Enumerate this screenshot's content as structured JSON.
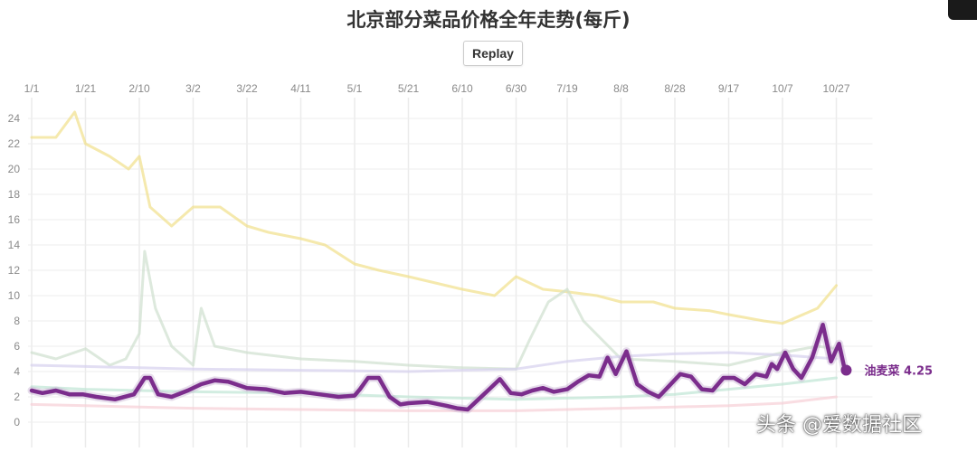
{
  "title": "北京部分菜品价格全年走势(每斤)",
  "replay_label": "Replay",
  "watermark": "头条 @爱数据社区",
  "chart_data": {
    "type": "line",
    "title": "北京部分菜品价格全年走势(每斤)",
    "x_ticks": [
      "1/1",
      "1/21",
      "2/10",
      "3/2",
      "3/22",
      "4/11",
      "5/1",
      "5/21",
      "6/10",
      "6/30",
      "7/19",
      "8/8",
      "8/28",
      "9/17",
      "10/7",
      "10/27"
    ],
    "y_ticks": [
      0,
      2,
      4,
      6,
      8,
      10,
      12,
      14,
      16,
      18,
      20,
      22,
      24
    ],
    "ylim": [
      0,
      25
    ],
    "grid": true,
    "highlight_series": {
      "name": "油麦菜",
      "end_label": "油麦菜 4.25",
      "color": "#7b2d8c",
      "x": [
        "1/1",
        "1/5",
        "1/10",
        "1/15",
        "1/20",
        "1/25",
        "2/1",
        "2/8",
        "2/12",
        "2/14",
        "2/17",
        "2/22",
        "2/28",
        "3/5",
        "3/10",
        "3/15",
        "3/22",
        "3/29",
        "4/5",
        "4/11",
        "4/18",
        "4/25",
        "5/1",
        "5/3",
        "5/6",
        "5/10",
        "5/14",
        "5/18",
        "5/21",
        "5/28",
        "6/4",
        "6/8",
        "6/12",
        "6/16",
        "6/20",
        "6/24",
        "6/28",
        "7/2",
        "7/6",
        "7/10",
        "7/14",
        "7/19",
        "7/23",
        "7/27",
        "7/31",
        "8/3",
        "8/6",
        "8/10",
        "8/14",
        "8/18",
        "8/22",
        "8/26",
        "8/30",
        "9/3",
        "9/7",
        "9/11",
        "9/15",
        "9/19",
        "9/23",
        "9/27",
        "10/1",
        "10/3",
        "10/5",
        "10/8",
        "10/11",
        "10/14",
        "10/18",
        "10/22",
        "10/25",
        "10/28",
        "10/30"
      ],
      "y": [
        2.5,
        2.3,
        2.5,
        2.2,
        2.2,
        2.0,
        1.8,
        2.2,
        3.5,
        3.5,
        2.2,
        2.0,
        2.5,
        3.0,
        3.3,
        3.2,
        2.7,
        2.6,
        2.3,
        2.4,
        2.2,
        2.0,
        2.1,
        2.6,
        3.5,
        3.5,
        2.0,
        1.4,
        1.5,
        1.6,
        1.3,
        1.1,
        1.0,
        1.8,
        2.6,
        3.4,
        2.3,
        2.2,
        2.5,
        2.7,
        2.4,
        2.6,
        3.2,
        3.7,
        3.6,
        5.1,
        3.8,
        5.6,
        3.0,
        2.4,
        2.0,
        2.9,
        3.8,
        3.6,
        2.6,
        2.5,
        3.5,
        3.5,
        3.0,
        3.8,
        3.6,
        4.6,
        4.2,
        5.5,
        4.2,
        3.5,
        5.1,
        7.7,
        4.8,
        6.2,
        4.25
      ]
    },
    "faded_series": [
      {
        "name": "",
        "end_label": "",
        "color": "#f1e08a",
        "x": [
          "1/1",
          "1/10",
          "1/17",
          "1/21",
          "1/30",
          "2/6",
          "2/10",
          "2/14",
          "2/22",
          "3/2",
          "3/12",
          "3/22",
          "3/30",
          "4/11",
          "4/20",
          "5/1",
          "5/10",
          "5/21",
          "5/31",
          "6/10",
          "6/22",
          "6/30",
          "7/10",
          "7/19",
          "7/30",
          "8/8",
          "8/20",
          "8/28",
          "9/10",
          "9/17",
          "9/30",
          "10/7",
          "10/20",
          "10/27"
        ],
        "y": [
          22.5,
          22.5,
          24.5,
          22.0,
          21.0,
          20.0,
          21.0,
          17.0,
          15.5,
          17.0,
          17.0,
          15.5,
          15.0,
          14.5,
          14.0,
          12.5,
          12.0,
          11.5,
          11.0,
          10.5,
          10.0,
          11.5,
          10.5,
          10.3,
          10.0,
          9.5,
          9.5,
          9.0,
          8.8,
          8.5,
          8.0,
          7.8,
          9.0,
          10.8
        ]
      },
      {
        "name": "",
        "end_label": "",
        "color": "#cfe0cf",
        "x": [
          "1/1",
          "1/10",
          "1/21",
          "1/30",
          "2/5",
          "2/10",
          "2/12",
          "2/16",
          "2/22",
          "3/2",
          "3/5",
          "3/10",
          "3/22",
          "4/11",
          "5/1",
          "5/21",
          "6/10",
          "6/30",
          "7/5",
          "7/12",
          "7/19",
          "7/25",
          "8/8",
          "8/28",
          "9/17",
          "10/7",
          "10/20",
          "10/27"
        ],
        "y": [
          5.5,
          5.0,
          5.8,
          4.5,
          5.0,
          7.0,
          13.5,
          9.0,
          6.0,
          4.5,
          9.0,
          6.0,
          5.5,
          5.0,
          4.8,
          4.5,
          4.3,
          4.2,
          6.5,
          9.5,
          10.5,
          8.0,
          5.0,
          4.8,
          4.5,
          5.5,
          6.0,
          5.8
        ]
      },
      {
        "name": "",
        "end_label": "",
        "color": "#d6d0ee",
        "x": [
          "1/1",
          "1/21",
          "2/10",
          "3/2",
          "4/11",
          "5/21",
          "6/30",
          "7/19",
          "8/8",
          "8/28",
          "9/17",
          "10/7",
          "10/27"
        ],
        "y": [
          4.5,
          4.4,
          4.3,
          4.2,
          4.1,
          4.0,
          4.2,
          4.8,
          5.2,
          5.4,
          5.5,
          5.3,
          5.0
        ]
      },
      {
        "name": "",
        "end_label": "",
        "color": "#bfe5d4",
        "x": [
          "1/1",
          "1/21",
          "2/10",
          "3/2",
          "4/11",
          "5/21",
          "6/30",
          "7/19",
          "8/8",
          "8/28",
          "9/17",
          "10/7",
          "10/27"
        ],
        "y": [
          2.8,
          2.6,
          2.5,
          2.4,
          2.3,
          2.0,
          1.8,
          1.9,
          2.0,
          2.2,
          2.6,
          3.0,
          3.5
        ]
      },
      {
        "name": "",
        "end_label": "",
        "color": "#f6cfd6",
        "x": [
          "1/1",
          "1/21",
          "2/10",
          "3/2",
          "4/11",
          "5/21",
          "6/30",
          "7/19",
          "8/8",
          "8/28",
          "9/17",
          "10/7",
          "10/27"
        ],
        "y": [
          1.4,
          1.3,
          1.2,
          1.1,
          1.0,
          0.9,
          0.9,
          1.0,
          1.1,
          1.2,
          1.3,
          1.5,
          2.0
        ]
      }
    ]
  }
}
